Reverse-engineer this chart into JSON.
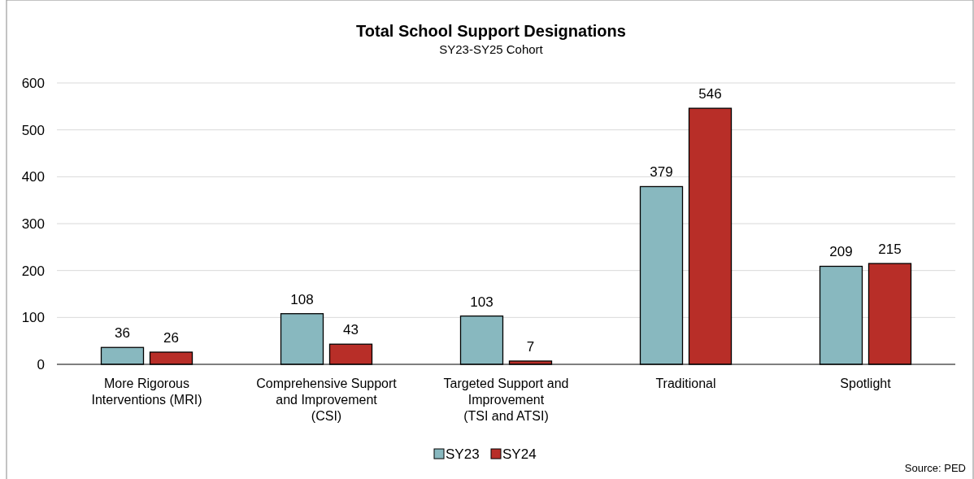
{
  "chart_data": {
    "type": "bar",
    "title": "Total School Support Designations",
    "subtitle": "SY23-SY25 Cohort",
    "categories": [
      "More Rigorous\nInterventions (MRI)",
      "Comprehensive Support\nand Improvement\n(CSI)",
      "Targeted Support and\nImprovement\n(TSI and ATSI)",
      "Traditional",
      "Spotlight"
    ],
    "series": [
      {
        "name": "SY23",
        "color": "#88b8bf",
        "values": [
          36,
          108,
          103,
          379,
          209
        ]
      },
      {
        "name": "SY24",
        "color": "#b82e28",
        "values": [
          26,
          43,
          7,
          546,
          215
        ]
      }
    ],
    "ylim": [
      0,
      600
    ],
    "yticks": [
      0,
      100,
      200,
      300,
      400,
      500,
      600
    ],
    "grid": "y",
    "legend": "bottom",
    "data_labels": true,
    "annotations": [
      "Source: PED"
    ]
  }
}
